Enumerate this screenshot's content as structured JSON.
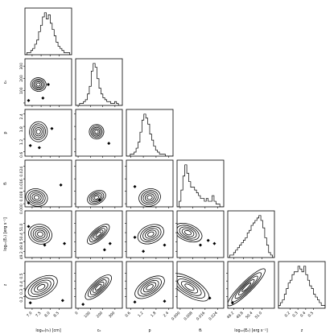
{
  "chart_data": {
    "type": "scatter",
    "style": "corner-plot",
    "colors": {
      "ink": "#000000",
      "background": "#ffffff"
    },
    "parameters": [
      {
        "key": "logM",
        "xlabel": "log₁₀(r₀) [cm]",
        "ylabel": "",
        "range": [
          6.6,
          9.2
        ],
        "ticks": [
          {
            "v": 7.0,
            "label": "7.0"
          },
          {
            "v": 7.5,
            "label": "7.5"
          },
          {
            "v": 8.0,
            "label": "8.0"
          },
          {
            "v": 8.5,
            "label": "8.5"
          }
        ],
        "hist": [
          0,
          1,
          1,
          2,
          3,
          5,
          7,
          11,
          14,
          18,
          20,
          17,
          19,
          15,
          12,
          9,
          6,
          4,
          3,
          2,
          1,
          1,
          1,
          0
        ]
      },
      {
        "key": "c0",
        "xlabel": "c₀",
        "ylabel": "c₀",
        "range": [
          -20,
          360
        ],
        "ticks": [
          {
            "v": 0,
            "label": "0"
          },
          {
            "v": 100,
            "label": "100"
          },
          {
            "v": 200,
            "label": "200"
          },
          {
            "v": 300,
            "label": "300"
          }
        ],
        "ytick_labels": [
          "100",
          "200",
          "300"
        ],
        "hist": [
          0,
          0,
          1,
          1,
          2,
          3,
          6,
          10,
          18,
          22,
          20,
          14,
          9,
          6,
          4,
          3,
          2,
          2,
          1,
          1,
          2,
          1,
          0,
          0
        ]
      },
      {
        "key": "p",
        "xlabel": "p",
        "ylabel": "p",
        "range": [
          0.4,
          2.6
        ],
        "ticks": [
          {
            "v": 0.6,
            "label": "0.6"
          },
          {
            "v": 1.2,
            "label": "1.2"
          },
          {
            "v": 1.8,
            "label": "1.8"
          },
          {
            "v": 2.4,
            "label": "2.4"
          }
        ],
        "hist": [
          0,
          0,
          1,
          1,
          2,
          4,
          7,
          12,
          18,
          21,
          19,
          16,
          11,
          8,
          5,
          3,
          2,
          1,
          1,
          1,
          0,
          0,
          0,
          0
        ]
      },
      {
        "key": "theta",
        "xlabel": "θᵢ",
        "ylabel": "θᵢ",
        "range": [
          -0.002,
          0.028
        ],
        "ticks": [
          {
            "v": 0.0,
            "label": "0.000"
          },
          {
            "v": 0.008,
            "label": "0.008"
          },
          {
            "v": 0.016,
            "label": "0.016"
          },
          {
            "v": 0.024,
            "label": "0.024"
          }
        ],
        "hist": [
          0,
          2,
          6,
          11,
          15,
          12,
          9,
          7,
          7,
          6,
          5,
          4,
          3,
          3,
          2,
          3,
          2,
          2,
          4,
          2,
          1,
          1,
          0,
          0
        ]
      },
      {
        "key": "logE",
        "xlabel": "log₁₀(E₀) [erg s⁻¹]",
        "ylabel": "log₁₀(E₀) [erg s⁻¹]",
        "range": [
          48.8,
          51.8
        ],
        "ticks": [
          {
            "v": 49.2,
            "label": "49.2"
          },
          {
            "v": 49.8,
            "label": "49.8"
          },
          {
            "v": 50.4,
            "label": "50.4"
          },
          {
            "v": 51.0,
            "label": "51.0"
          }
        ],
        "hist": [
          0,
          1,
          1,
          2,
          3,
          4,
          5,
          6,
          7,
          8,
          10,
          11,
          13,
          14,
          15,
          16,
          17,
          15,
          12,
          8,
          5,
          2,
          1,
          0
        ]
      },
      {
        "key": "z",
        "xlabel": "z",
        "ylabel": "z",
        "range": [
          0.05,
          0.65
        ],
        "ticks": [
          {
            "v": 0.2,
            "label": "0.2"
          },
          {
            "v": 0.3,
            "label": "0.3"
          },
          {
            "v": 0.4,
            "label": "0.4"
          },
          {
            "v": 0.5,
            "label": "0.5"
          }
        ],
        "hist": [
          1,
          2,
          3,
          5,
          7,
          9,
          10,
          12,
          13,
          13,
          15,
          14,
          13,
          15,
          12,
          10,
          8,
          7,
          5,
          4,
          3,
          2,
          1,
          1
        ]
      }
    ],
    "pairs": [
      {
        "i": 1,
        "j": 0,
        "center": [
          7.35,
          150
        ],
        "spread": [
          0.25,
          25
        ],
        "corr": -0.2,
        "outliers": [
          [
            6.8,
            20
          ],
          [
            7.6,
            40
          ],
          [
            7.9,
            150
          ]
        ]
      },
      {
        "i": 2,
        "j": 0,
        "center": [
          7.35,
          1.55
        ],
        "spread": [
          0.28,
          0.22
        ],
        "corr": -0.1,
        "outliers": [
          [
            6.9,
            0.9
          ],
          [
            7.4,
            0.8
          ],
          [
            8.1,
            1.7
          ]
        ]
      },
      {
        "i": 2,
        "j": 1,
        "center": [
          150,
          1.55
        ],
        "spread": [
          25,
          0.22
        ],
        "corr": 0.1,
        "outliers": [
          [
            250,
            1.0
          ]
        ]
      },
      {
        "i": 3,
        "j": 0,
        "center": [
          7.25,
          0.004
        ],
        "spread": [
          0.3,
          0.003
        ],
        "corr": -0.3,
        "outliers": [
          [
            6.8,
            0.0005
          ],
          [
            8.6,
            0.012
          ]
        ]
      },
      {
        "i": 3,
        "j": 1,
        "center": [
          150,
          0.004
        ],
        "spread": [
          28,
          0.003
        ],
        "corr": 0.4,
        "outliers": [
          [
            175,
            0.0025
          ]
        ]
      },
      {
        "i": 3,
        "j": 2,
        "center": [
          1.5,
          0.004
        ],
        "spread": [
          0.25,
          0.003
        ],
        "corr": 0.3,
        "outliers": [
          [
            0.8,
            0.011
          ]
        ]
      },
      {
        "i": 4,
        "j": 0,
        "center": [
          7.45,
          50.3
        ],
        "spread": [
          0.3,
          0.35
        ],
        "corr": -0.3,
        "outliers": [
          [
            6.8,
            50.8
          ],
          [
            8.8,
            49.7
          ],
          [
            7.7,
            49.6
          ]
        ]
      },
      {
        "i": 4,
        "j": 1,
        "center": [
          165,
          50.3
        ],
        "spread": [
          30,
          0.4
        ],
        "corr": 0.6,
        "outliers": [
          [
            215,
            49.3
          ],
          [
            260,
            49.7
          ]
        ]
      },
      {
        "i": 4,
        "j": 2,
        "center": [
          1.55,
          50.3
        ],
        "spread": [
          0.25,
          0.4
        ],
        "corr": 0.4,
        "outliers": [
          [
            0.8,
            50.1
          ],
          [
            2.2,
            49.6
          ],
          [
            1.2,
            49.2
          ]
        ]
      },
      {
        "i": 4,
        "j": 3,
        "center": [
          0.005,
          50.4
        ],
        "spread": [
          0.004,
          0.35
        ],
        "corr": -0.5,
        "outliers": [
          [
            0.018,
            49.9
          ],
          [
            0.022,
            49.7
          ],
          [
            0.013,
            49.6
          ]
        ]
      },
      {
        "i": 5,
        "j": 0,
        "center": [
          7.5,
          0.32
        ],
        "spread": [
          0.35,
          0.1
        ],
        "corr": 0.5,
        "outliers": [
          [
            6.9,
            0.12
          ],
          [
            8.7,
            0.15
          ]
        ]
      },
      {
        "i": 5,
        "j": 1,
        "center": [
          165,
          0.32
        ],
        "spread": [
          35,
          0.1
        ],
        "corr": 0.6,
        "outliers": [
          [
            40,
            0.1
          ]
        ]
      },
      {
        "i": 5,
        "j": 2,
        "center": [
          1.5,
          0.32
        ],
        "spread": [
          0.25,
          0.1
        ],
        "corr": 0.5,
        "outliers": [
          [
            0.8,
            0.13
          ],
          [
            2.2,
            0.14
          ]
        ]
      },
      {
        "i": 5,
        "j": 3,
        "center": [
          0.006,
          0.32
        ],
        "spread": [
          0.005,
          0.1
        ],
        "corr": -0.7,
        "outliers": [
          [
            0.019,
            0.18
          ]
        ]
      },
      {
        "i": 5,
        "j": 4,
        "center": [
          50.0,
          0.32
        ],
        "spread": [
          0.45,
          0.11
        ],
        "corr": 0.96,
        "outliers": [
          [
            49.1,
            0.12
          ]
        ]
      }
    ]
  }
}
